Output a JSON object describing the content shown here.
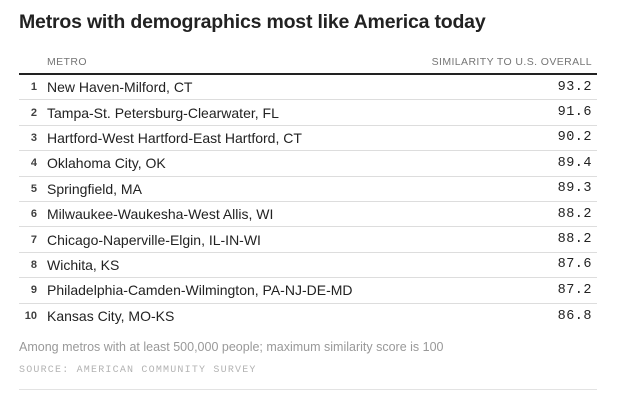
{
  "title": "Metros with demographics most like America today",
  "table": {
    "header": {
      "metro": "METRO",
      "similarity": "SIMILARITY TO U.S. OVERALL"
    },
    "rows": [
      {
        "rank": "1",
        "metro": "New Haven-Milford, CT",
        "score": "93.2"
      },
      {
        "rank": "2",
        "metro": "Tampa-St. Petersburg-Clearwater, FL",
        "score": "91.6"
      },
      {
        "rank": "3",
        "metro": "Hartford-West Hartford-East Hartford, CT",
        "score": "90.2"
      },
      {
        "rank": "4",
        "metro": "Oklahoma City, OK",
        "score": "89.4"
      },
      {
        "rank": "5",
        "metro": "Springfield, MA",
        "score": "89.3"
      },
      {
        "rank": "6",
        "metro": "Milwaukee-Waukesha-West Allis, WI",
        "score": "88.2"
      },
      {
        "rank": "7",
        "metro": "Chicago-Naperville-Elgin, IL-IN-WI",
        "score": "88.2"
      },
      {
        "rank": "8",
        "metro": "Wichita, KS",
        "score": "87.6"
      },
      {
        "rank": "9",
        "metro": "Philadelphia-Camden-Wilmington, PA-NJ-DE-MD",
        "score": "87.2"
      },
      {
        "rank": "10",
        "metro": "Kansas City, MO-KS",
        "score": "86.8"
      }
    ]
  },
  "footnote": "Among metros with at least 500,000 people; maximum similarity score is 100",
  "source": "SOURCE: AMERICAN COMMUNITY SURVEY",
  "colors": {
    "text": "#222222",
    "header_label": "#757575",
    "rule_heavy": "#222222",
    "rule_light": "#dddddd",
    "footnote": "#999999",
    "source": "#b3b3b3",
    "background": "#ffffff"
  },
  "chart_data": {
    "type": "table",
    "title": "Metros with demographics most like America today",
    "columns": [
      "METRO",
      "SIMILARITY TO U.S. OVERALL"
    ],
    "rows": [
      [
        1,
        "New Haven-Milford, CT",
        93.2
      ],
      [
        2,
        "Tampa-St. Petersburg-Clearwater, FL",
        91.6
      ],
      [
        3,
        "Hartford-West Hartford-East Hartford, CT",
        90.2
      ],
      [
        4,
        "Oklahoma City, OK",
        89.4
      ],
      [
        5,
        "Springfield, MA",
        89.3
      ],
      [
        6,
        "Milwaukee-Waukesha-West Allis, WI",
        88.2
      ],
      [
        7,
        "Chicago-Naperville-Elgin, IL-IN-WI",
        88.2
      ],
      [
        8,
        "Wichita, KS",
        87.6
      ],
      [
        9,
        "Philadelphia-Camden-Wilmington, PA-NJ-DE-MD",
        87.2
      ],
      [
        10,
        "Kansas City, MO-KS",
        86.8
      ]
    ],
    "value_range": [
      0,
      100
    ],
    "footnote": "Among metros with at least 500,000 people; maximum similarity score is 100",
    "source": "AMERICAN COMMUNITY SURVEY"
  }
}
